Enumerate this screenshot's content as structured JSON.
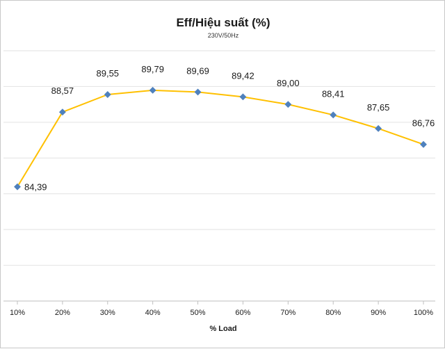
{
  "chart_data": {
    "type": "line",
    "title": "Eff/Hiệu suất (%)",
    "subtitle": "230V/50Hz",
    "xlabel": "% Load",
    "ylabel": "",
    "categories": [
      "10%",
      "20%",
      "30%",
      "40%",
      "50%",
      "60%",
      "70%",
      "80%",
      "90%",
      "100%"
    ],
    "series": [
      {
        "values": [
          84.39,
          88.57,
          89.55,
          89.79,
          89.69,
          89.42,
          89.0,
          88.41,
          87.65,
          86.76
        ],
        "labels": [
          "84,39",
          "88,57",
          "89,55",
          "89,79",
          "89,69",
          "89,42",
          "89,00",
          "88,41",
          "87,65",
          "86,76"
        ],
        "line_color": "#FFC000",
        "marker_color": "#4F81BD"
      }
    ],
    "ylim": [
      78,
      92
    ],
    "grid": true,
    "legend": "none"
  }
}
